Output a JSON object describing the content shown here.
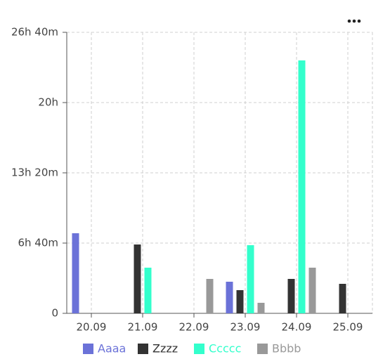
{
  "chart_data": {
    "type": "bar",
    "categories": [
      "20.09",
      "21.09",
      "22.09",
      "23.09",
      "24.09",
      "25.09"
    ],
    "series": [
      {
        "name": "Aaaa",
        "color": "#6b72d8",
        "values": [
          456,
          0,
          0,
          180,
          0,
          0
        ]
      },
      {
        "name": "Zzzz",
        "color": "#333333",
        "values": [
          0,
          392,
          0,
          132,
          196,
          168
        ]
      },
      {
        "name": "Ccccc",
        "color": "#33ffcc",
        "values": [
          0,
          260,
          0,
          388,
          1440,
          0
        ]
      },
      {
        "name": "Bbbb",
        "color": "#999999",
        "values": [
          0,
          0,
          196,
          60,
          260,
          0
        ]
      }
    ],
    "ylim": [
      0,
      1600
    ],
    "yticks": [
      0,
      {
        "value": 400,
        "label": "6h 40m"
      },
      {
        "value": 800,
        "label": "13h 20m"
      },
      {
        "value": 1200,
        "label": "20h"
      },
      {
        "value": 1600,
        "label": "26h 40m"
      }
    ],
    "grid": true
  }
}
